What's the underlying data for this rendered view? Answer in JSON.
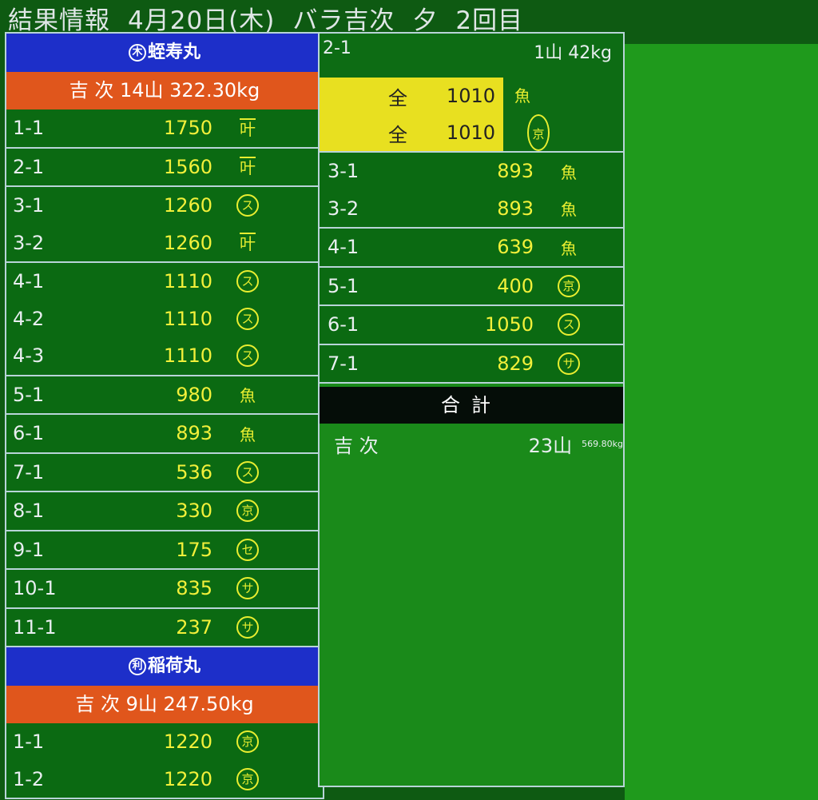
{
  "header": {
    "title": "結果情報",
    "date": "4月20日(木)",
    "type": "バラ吉次",
    "session": "夕",
    "round": "2回目"
  },
  "colors": {
    "ship_header": "#1d2fc9",
    "buyer_header": "#e0561c",
    "background": "#0c6b14",
    "price": "#f2f03a",
    "highlight": "#e8e020"
  },
  "left": {
    "ships": [
      {
        "mark": "木",
        "name": "蛭寿丸",
        "buyer": "吉 次 14山 322.30kg",
        "groups": [
          [
            {
              "lot": "1-1",
              "price": "1750",
              "mark": "叶"
            }
          ],
          [
            {
              "lot": "2-1",
              "price": "1560",
              "mark": "叶"
            }
          ],
          [
            {
              "lot": "3-1",
              "price": "1260",
              "mark": "ス"
            },
            {
              "lot": "3-2",
              "price": "1260",
              "mark": "叶"
            }
          ],
          [
            {
              "lot": "4-1",
              "price": "1110",
              "mark": "ス"
            },
            {
              "lot": "4-2",
              "price": "1110",
              "mark": "ス"
            },
            {
              "lot": "4-3",
              "price": "1110",
              "mark": "ス"
            }
          ],
          [
            {
              "lot": "5-1",
              "price": "980",
              "mark": "魚"
            }
          ],
          [
            {
              "lot": "6-1",
              "price": "893",
              "mark": "魚"
            }
          ],
          [
            {
              "lot": "7-1",
              "price": "536",
              "mark": "ス"
            }
          ],
          [
            {
              "lot": "8-1",
              "price": "330",
              "mark": "京"
            }
          ],
          [
            {
              "lot": "9-1",
              "price": "175",
              "mark": "セ"
            }
          ],
          [
            {
              "lot": "10-1",
              "price": "835",
              "mark": "サ"
            }
          ],
          [
            {
              "lot": "11-1",
              "price": "237",
              "mark": "サ"
            }
          ]
        ]
      },
      {
        "mark": "利",
        "name": "稲荷丸",
        "buyer": "吉 次 9山 247.50kg",
        "groups": [
          [
            {
              "lot": "1-1",
              "price": "1220",
              "mark": "京"
            },
            {
              "lot": "1-2",
              "price": "1220",
              "mark": "京"
            }
          ]
        ]
      }
    ]
  },
  "middle": {
    "head": {
      "lot": "2-1",
      "qty": "1山 42kg"
    },
    "highlight": [
      {
        "label": "全",
        "price": "1010",
        "mark": "魚"
      },
      {
        "label": "全",
        "price": "1010",
        "mark": "京"
      }
    ],
    "groups": [
      [
        {
          "lot": "3-1",
          "price": "893",
          "mark": "魚"
        },
        {
          "lot": "3-2",
          "price": "893",
          "mark": "魚"
        }
      ],
      [
        {
          "lot": "4-1",
          "price": "639",
          "mark": "魚"
        }
      ],
      [
        {
          "lot": "5-1",
          "price": "400",
          "mark": "京"
        }
      ],
      [
        {
          "lot": "6-1",
          "price": "1050",
          "mark": "ス"
        }
      ],
      [
        {
          "lot": "7-1",
          "price": "829",
          "mark": "サ"
        }
      ]
    ],
    "total": {
      "label": "合計",
      "buyer": "吉 次",
      "count": "23山",
      "weight": "569.80kg"
    }
  }
}
